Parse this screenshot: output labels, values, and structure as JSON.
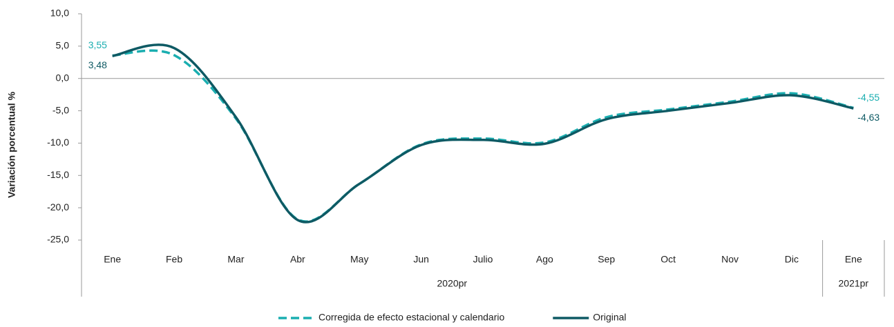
{
  "chart_data": {
    "type": "line",
    "y_label": "Variación porcentual %",
    "categories": [
      "Ene",
      "Feb",
      "Mar",
      "Abr",
      "May",
      "Jun",
      "Julio",
      "Ago",
      "Sep",
      "Oct",
      "Nov",
      "Dic",
      "Ene"
    ],
    "category_groups": [
      "2020pr",
      "2020pr",
      "2020pr",
      "2020pr",
      "2020pr",
      "2020pr",
      "2020pr",
      "2020pr",
      "2020pr",
      "2020pr",
      "2020pr",
      "2020pr",
      "2021pr"
    ],
    "series": [
      {
        "name": "Corregida de efecto estacional y calendario",
        "color": "#1aaeb0",
        "dashed": true,
        "label_position": "above",
        "values": [
          3.55,
          3.6,
          -6.2,
          -21.8,
          -16.3,
          -10.2,
          -9.3,
          -9.9,
          -6.0,
          -4.8,
          -3.6,
          -2.3,
          -4.55
        ],
        "value_labels": [
          "3,55",
          null,
          null,
          null,
          null,
          null,
          null,
          null,
          null,
          null,
          null,
          null,
          "-4,55"
        ]
      },
      {
        "name": "Original",
        "color": "#0e5a64",
        "dashed": false,
        "label_position": "below",
        "values": [
          3.48,
          4.7,
          -6.0,
          -21.9,
          -16.3,
          -10.3,
          -9.5,
          -10.1,
          -6.3,
          -5.0,
          -3.8,
          -2.6,
          -4.63
        ],
        "value_labels": [
          "3,48",
          null,
          null,
          null,
          null,
          null,
          null,
          null,
          null,
          null,
          null,
          null,
          "-4,63"
        ]
      }
    ],
    "ylim": [
      -25,
      10
    ],
    "yticks": [
      {
        "value": 10,
        "label": "10,0"
      },
      {
        "value": 5,
        "label": "5,0"
      },
      {
        "value": 0,
        "label": "0,0"
      },
      {
        "value": -5,
        "label": "-5,0"
      },
      {
        "value": -10,
        "label": "-10,0"
      },
      {
        "value": -15,
        "label": "-15,0"
      },
      {
        "value": -20,
        "label": "-20,0"
      },
      {
        "value": -25,
        "label": "-25,0"
      }
    ],
    "smooth": true,
    "legend": "bottom"
  }
}
